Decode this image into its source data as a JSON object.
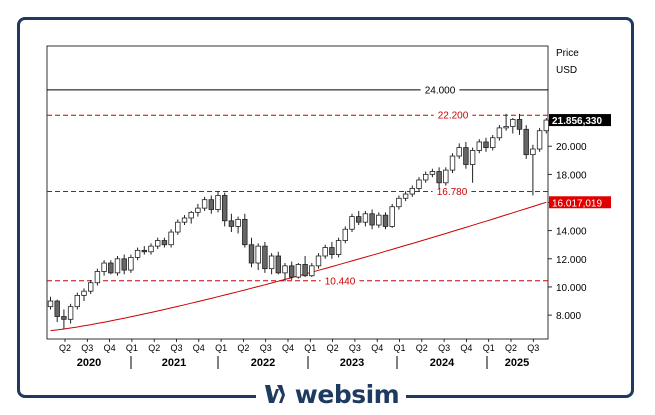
{
  "brand": {
    "name": "websim",
    "color": "#1e3a5f"
  },
  "chart_data": {
    "type": "candlestick",
    "period": "monthly",
    "title": "",
    "currency_label": "Price",
    "currency_unit": "USD",
    "ylim": [
      6800,
      25200
    ],
    "ytick_values": [
      8000,
      10000,
      12000,
      14000,
      16000,
      18000,
      20000
    ],
    "ytick_labels": [
      "8.000",
      "10.000",
      "12.000",
      "14.000",
      "16.000",
      "18.000",
      "20.000"
    ],
    "years": [
      "2020",
      "2021",
      "2022",
      "2023",
      "2024",
      "2025"
    ],
    "quarter_labels": [
      "Q2",
      "Q3",
      "Q4",
      "Q1",
      "Q2",
      "Q3",
      "Q4",
      "Q1",
      "Q2",
      "Q3",
      "Q4",
      "Q1",
      "Q2",
      "Q3",
      "Q4",
      "Q1",
      "Q2",
      "Q3",
      "Q4",
      "Q1",
      "Q2",
      "Q3"
    ],
    "levels": [
      {
        "value": 24000,
        "label": "24.000",
        "style": "solid",
        "color": "#000000"
      },
      {
        "value": 22200,
        "label": "22.200",
        "style": "dashed",
        "color": "#cc0000"
      },
      {
        "value": 16780,
        "label": "16.780",
        "style": "dashed",
        "color": "#cc0000"
      },
      {
        "value": 10440,
        "label": "10.440",
        "style": "dashed",
        "color": "#cc0000"
      }
    ],
    "last_price": {
      "value": 21856.33,
      "label": "21.856,330"
    },
    "ma_last": {
      "value": 16017.019,
      "label": "16.017,019"
    },
    "candles": [
      {
        "o": 8600,
        "h": 9300,
        "l": 8400,
        "c": 9000
      },
      {
        "o": 9000,
        "h": 9100,
        "l": 7500,
        "c": 7900
      },
      {
        "o": 7900,
        "h": 8400,
        "l": 7000,
        "c": 7700
      },
      {
        "o": 7700,
        "h": 8800,
        "l": 7400,
        "c": 8600
      },
      {
        "o": 8600,
        "h": 9600,
        "l": 8400,
        "c": 9400
      },
      {
        "o": 9400,
        "h": 9900,
        "l": 9000,
        "c": 9700
      },
      {
        "o": 9700,
        "h": 10500,
        "l": 9500,
        "c": 10300
      },
      {
        "o": 10300,
        "h": 11300,
        "l": 10100,
        "c": 11100
      },
      {
        "o": 11100,
        "h": 11900,
        "l": 10800,
        "c": 11700
      },
      {
        "o": 11700,
        "h": 11900,
        "l": 10900,
        "c": 11000
      },
      {
        "o": 11000,
        "h": 12200,
        "l": 10800,
        "c": 12000
      },
      {
        "o": 12000,
        "h": 12300,
        "l": 10900,
        "c": 11200
      },
      {
        "o": 11200,
        "h": 12300,
        "l": 11000,
        "c": 12100
      },
      {
        "o": 12100,
        "h": 12800,
        "l": 11900,
        "c": 12600
      },
      {
        "o": 12600,
        "h": 12900,
        "l": 12300,
        "c": 12500
      },
      {
        "o": 12500,
        "h": 13100,
        "l": 12300,
        "c": 12900
      },
      {
        "o": 12900,
        "h": 13500,
        "l": 12700,
        "c": 13300
      },
      {
        "o": 13300,
        "h": 13500,
        "l": 12800,
        "c": 13000
      },
      {
        "o": 13000,
        "h": 14100,
        "l": 12800,
        "c": 13900
      },
      {
        "o": 13900,
        "h": 14800,
        "l": 13700,
        "c": 14600
      },
      {
        "o": 14600,
        "h": 15100,
        "l": 14400,
        "c": 14900
      },
      {
        "o": 14900,
        "h": 15400,
        "l": 14500,
        "c": 15300
      },
      {
        "o": 15300,
        "h": 15900,
        "l": 15000,
        "c": 15600
      },
      {
        "o": 15600,
        "h": 16400,
        "l": 15400,
        "c": 16200
      },
      {
        "o": 16200,
        "h": 16500,
        "l": 15200,
        "c": 15500
      },
      {
        "o": 15500,
        "h": 16800,
        "l": 15300,
        "c": 16500
      },
      {
        "o": 16500,
        "h": 16700,
        "l": 14300,
        "c": 14700
      },
      {
        "o": 14700,
        "h": 15200,
        "l": 13900,
        "c": 14300
      },
      {
        "o": 14300,
        "h": 15000,
        "l": 13800,
        "c": 14800
      },
      {
        "o": 14800,
        "h": 15200,
        "l": 12800,
        "c": 13000
      },
      {
        "o": 13000,
        "h": 13500,
        "l": 11400,
        "c": 11700
      },
      {
        "o": 11700,
        "h": 13100,
        "l": 11200,
        "c": 12900
      },
      {
        "o": 12900,
        "h": 13200,
        "l": 11000,
        "c": 11300
      },
      {
        "o": 11300,
        "h": 12400,
        "l": 10900,
        "c": 12200
      },
      {
        "o": 12200,
        "h": 12500,
        "l": 10900,
        "c": 11000
      },
      {
        "o": 11000,
        "h": 11700,
        "l": 10400,
        "c": 11500
      },
      {
        "o": 11500,
        "h": 11800,
        "l": 10500,
        "c": 10700
      },
      {
        "o": 10700,
        "h": 11700,
        "l": 10600,
        "c": 11600
      },
      {
        "o": 11600,
        "h": 12200,
        "l": 10700,
        "c": 10800
      },
      {
        "o": 10800,
        "h": 11700,
        "l": 10700,
        "c": 11500
      },
      {
        "o": 11500,
        "h": 12400,
        "l": 11300,
        "c": 12200
      },
      {
        "o": 12200,
        "h": 13000,
        "l": 12000,
        "c": 12800
      },
      {
        "o": 12800,
        "h": 13200,
        "l": 12000,
        "c": 12300
      },
      {
        "o": 12300,
        "h": 13500,
        "l": 12100,
        "c": 13300
      },
      {
        "o": 13300,
        "h": 14300,
        "l": 13100,
        "c": 14100
      },
      {
        "o": 14100,
        "h": 15200,
        "l": 13900,
        "c": 15000
      },
      {
        "o": 15000,
        "h": 15400,
        "l": 14400,
        "c": 14600
      },
      {
        "o": 14600,
        "h": 15400,
        "l": 14300,
        "c": 15200
      },
      {
        "o": 15200,
        "h": 15500,
        "l": 14100,
        "c": 14400
      },
      {
        "o": 14400,
        "h": 15300,
        "l": 14200,
        "c": 15100
      },
      {
        "o": 15100,
        "h": 15300,
        "l": 14100,
        "c": 14300
      },
      {
        "o": 14300,
        "h": 15900,
        "l": 14200,
        "c": 15700
      },
      {
        "o": 15700,
        "h": 16500,
        "l": 15500,
        "c": 16300
      },
      {
        "o": 16300,
        "h": 16800,
        "l": 16100,
        "c": 16600
      },
      {
        "o": 16600,
        "h": 17200,
        "l": 16400,
        "c": 17000
      },
      {
        "o": 17000,
        "h": 17800,
        "l": 16800,
        "c": 17600
      },
      {
        "o": 17600,
        "h": 18200,
        "l": 17400,
        "c": 18000
      },
      {
        "o": 18000,
        "h": 18400,
        "l": 17800,
        "c": 18200
      },
      {
        "o": 18200,
        "h": 18500,
        "l": 17000,
        "c": 17400
      },
      {
        "o": 17400,
        "h": 18500,
        "l": 17200,
        "c": 18300
      },
      {
        "o": 18300,
        "h": 19500,
        "l": 18100,
        "c": 19300
      },
      {
        "o": 19300,
        "h": 20200,
        "l": 19100,
        "c": 19900
      },
      {
        "o": 19900,
        "h": 20300,
        "l": 18400,
        "c": 18700
      },
      {
        "o": 18700,
        "h": 19900,
        "l": 17400,
        "c": 19700
      },
      {
        "o": 19700,
        "h": 20500,
        "l": 19500,
        "c": 20300
      },
      {
        "o": 20300,
        "h": 20600,
        "l": 19600,
        "c": 19900
      },
      {
        "o": 19900,
        "h": 20800,
        "l": 19700,
        "c": 20600
      },
      {
        "o": 20600,
        "h": 21500,
        "l": 20400,
        "c": 21300
      },
      {
        "o": 21300,
        "h": 22300,
        "l": 21100,
        "c": 21400
      },
      {
        "o": 21400,
        "h": 22000,
        "l": 20900,
        "c": 21900
      },
      {
        "o": 21900,
        "h": 22300,
        "l": 20800,
        "c": 21200
      },
      {
        "o": 21200,
        "h": 21500,
        "l": 19100,
        "c": 19400
      },
      {
        "o": 19400,
        "h": 20100,
        "l": 16500,
        "c": 19800
      },
      {
        "o": 19800,
        "h": 21300,
        "l": 19600,
        "c": 21100
      },
      {
        "o": 21100,
        "h": 22000,
        "l": 20900,
        "c": 21856
      }
    ],
    "ma_start": 6900
  }
}
